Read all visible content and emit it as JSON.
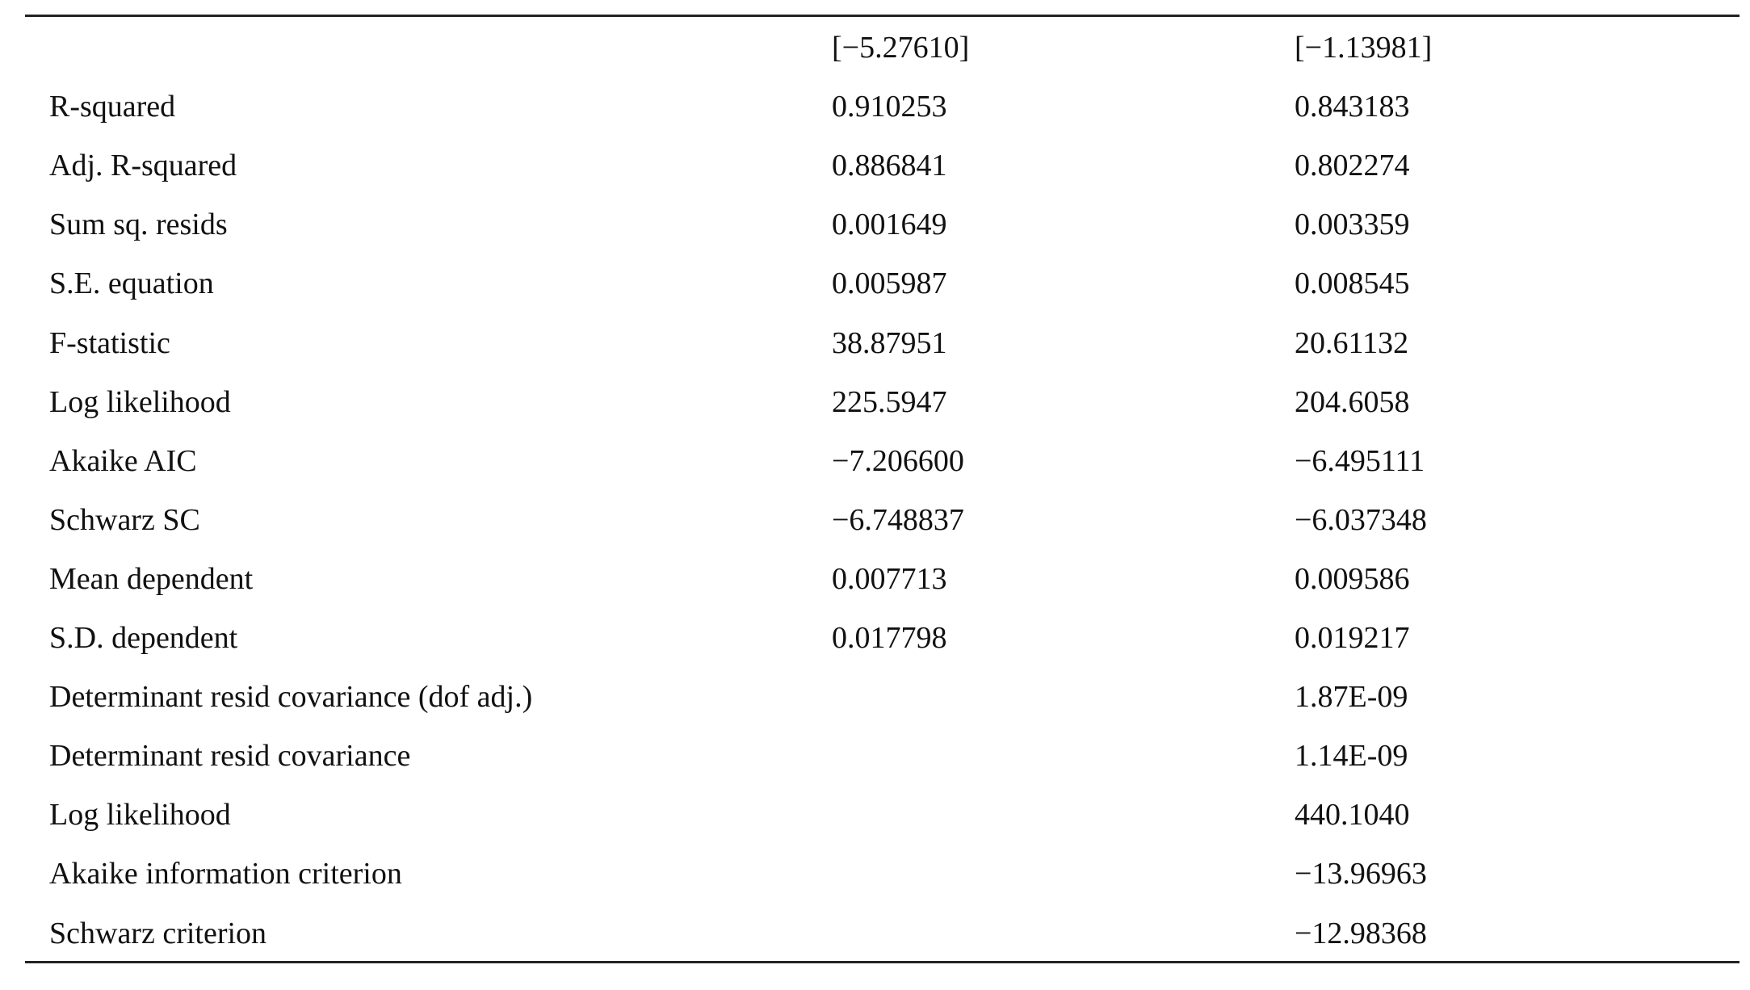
{
  "table": {
    "rows": [
      {
        "col2": "[−5.27610]",
        "col3": "[−1.13981]"
      },
      {
        "label": "R-squared",
        "col2": "0.910253",
        "col3": "0.843183"
      },
      {
        "label": "Adj. R-squared",
        "col2": "0.886841",
        "col3": "0.802274"
      },
      {
        "label": "Sum sq. resids",
        "col2": "0.001649",
        "col3": "0.003359"
      },
      {
        "label": "S.E. equation",
        "col2": "0.005987",
        "col3": "0.008545"
      },
      {
        "label": "F-statistic",
        "col2": "38.87951",
        "col3": "20.61132"
      },
      {
        "label": "Log likelihood",
        "col2": "225.5947",
        "col3": "204.6058"
      },
      {
        "label": "Akaike AIC",
        "col2": "−7.206600",
        "col3": "−6.495111"
      },
      {
        "label": "Schwarz SC",
        "col2": "−6.748837",
        "col3": "−6.037348"
      },
      {
        "label": "Mean dependent",
        "col2": "0.007713",
        "col3": "0.009586"
      },
      {
        "label": "S.D. dependent",
        "col2": "0.017798",
        "col3": "0.019217"
      },
      {
        "label": "Determinant resid covariance (dof adj.)",
        "col3": "1.87E-09"
      },
      {
        "label": "Determinant resid covariance",
        "col3": "1.14E-09"
      },
      {
        "label": "Log likelihood",
        "col3": "440.1040"
      },
      {
        "label": "Akaike information criterion",
        "col3": "−13.96963"
      },
      {
        "label": "Schwarz criterion",
        "col3": "−12.98368"
      }
    ]
  }
}
